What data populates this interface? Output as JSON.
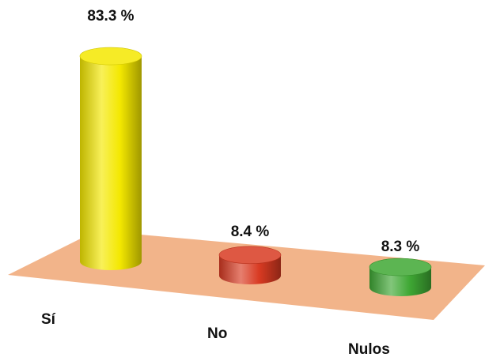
{
  "chart_data": {
    "type": "bar",
    "style": "3d-cylinder",
    "title": "",
    "xlabel": "",
    "ylabel": "",
    "categories": [
      "Sí",
      "No",
      "Nulos"
    ],
    "values": [
      83.3,
      8.4,
      8.3
    ],
    "data_labels": [
      "83.3 %",
      "8.4 %",
      "8.3 %"
    ],
    "unit": "%",
    "colors": [
      "#f4e800",
      "#d83a22",
      "#3fa834"
    ],
    "floor_color": "#f2b48a",
    "grid": false,
    "legend": "none"
  }
}
